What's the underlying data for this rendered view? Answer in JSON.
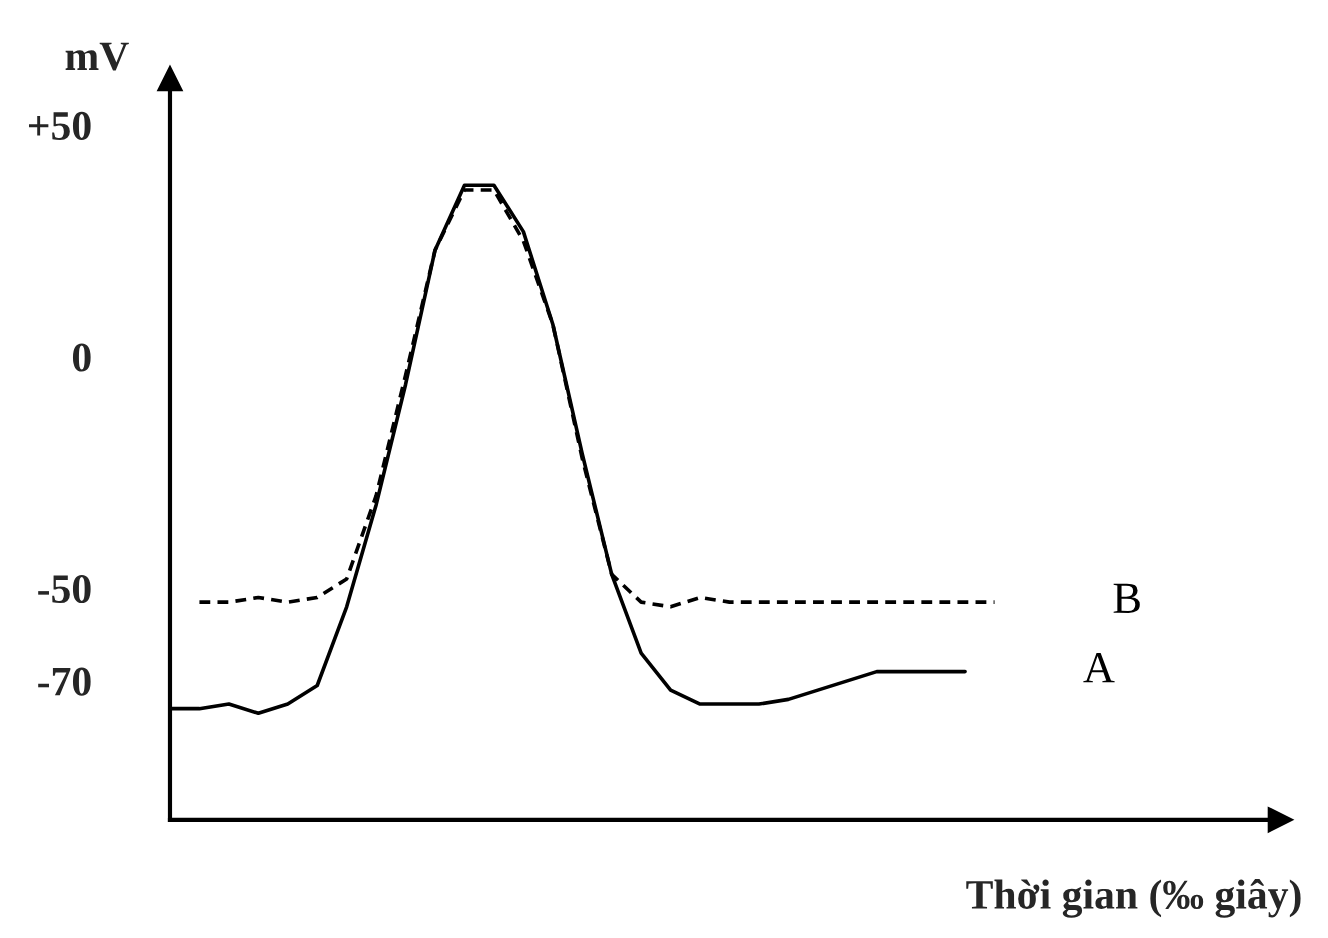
{
  "chart_data": {
    "type": "line",
    "ylabel": "mV",
    "xlabel": "Thời gian (‰ giây)",
    "categories": [
      null,
      null,
      null,
      null,
      null,
      null,
      null,
      null,
      null,
      null,
      null,
      null,
      null,
      null,
      null,
      null,
      null,
      null,
      null,
      null,
      null,
      null,
      null,
      null,
      null,
      null,
      null,
      null,
      null,
      null,
      null,
      null,
      null,
      null,
      null,
      null,
      null,
      null
    ],
    "series": [
      {
        "name": "A",
        "color": "#000000",
        "line_style": "solid",
        "values": [
          -76,
          -76,
          -75,
          -77,
          -75,
          -71,
          -54,
          -32,
          -6,
          23,
          37,
          37,
          27,
          7,
          -21,
          -47,
          -64,
          -72,
          -75,
          -75,
          -75,
          -74,
          -72,
          -70,
          -68,
          -68,
          -68,
          -68,
          null,
          null,
          null,
          null,
          null,
          null,
          null,
          null,
          null,
          null
        ]
      },
      {
        "name": "B",
        "color": "#000000",
        "line_style": "dashed",
        "values": [
          null,
          -53,
          -53,
          -52,
          -53,
          -52,
          -48,
          -30,
          -4,
          23,
          36,
          36,
          25,
          7,
          -22,
          -47,
          -53,
          -54,
          -52,
          -53,
          -53,
          -53,
          -53,
          -53,
          -53,
          -53,
          -53,
          -53,
          -53,
          null,
          null,
          null,
          null,
          null,
          null,
          null,
          null,
          null
        ]
      }
    ],
    "ylim": [
      -100,
      60
    ],
    "yticks": [
      {
        "value": 50,
        "label": "+50"
      },
      0,
      -50,
      -70
    ],
    "tick_labels": "y",
    "grid": false,
    "legend": false
  }
}
